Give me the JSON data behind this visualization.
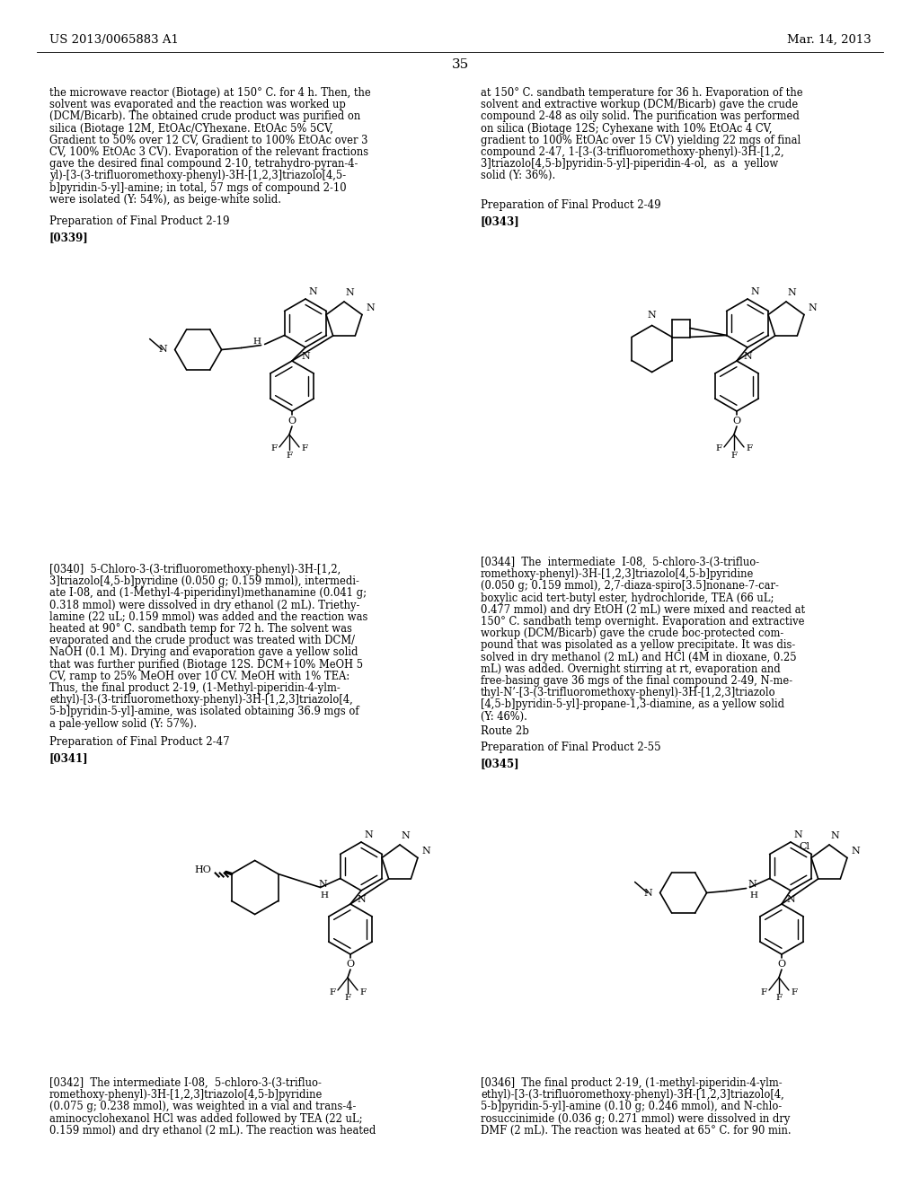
{
  "page_number": "35",
  "patent_number": "US 2013/0065883 A1",
  "patent_date": "Mar. 14, 2013",
  "bg": "#ffffff",
  "left_top": [
    "the microwave reactor (Biotage) at 150° C. for 4 h. Then, the",
    "solvent was evaporated and the reaction was worked up",
    "(DCM/Bicarb). The obtained crude product was purified on",
    "silica (Biotage 12M, EtOAc/CYhexane. EtOAc 5% 5CV,",
    "Gradient to 50% over 12 CV, Gradient to 100% EtOAc over 3",
    "CV, 100% EtOAc 3 CV). Evaporation of the relevant fractions",
    "gave the desired final compound 2-10, tetrahydro-pyran-4-",
    "yl)-[3-(3-trifluoromethoxy-phenyl)-3H-[1,2,3]triazolo[4,5-",
    "b]pyridin-5-yl]-amine; in total, 57 mgs of compound 2-10",
    "were isolated (Y: 54%), as beige-white solid."
  ],
  "right_top": [
    "at 150° C. sandbath temperature for 36 h. Evaporation of the",
    "solvent and extractive workup (DCM/Bicarb) gave the crude",
    "compound 2-48 as oily solid. The purification was performed",
    "on silica (Biotage 12S; Cyhexane with 10% EtOAc 4 CV,",
    "gradient to 100% EtOAc over 15 CV) yielding 22 mgs of final",
    "compound 2-47, 1-[3-(3-trifluoromethoxy-phenyl)-3H-[1,2,",
    "3]triazolo[4,5-b]pyridin-5-yl]-piperidin-4-ol,  as  a  yellow",
    "solid (Y: 36%)."
  ],
  "para340": [
    "[0340]  5-Chloro-3-(3-trifluoromethoxy-phenyl)-3H-[1,2,",
    "3]triazolo[4,5-b]pyridine (0.050 g; 0.159 mmol), intermedi-",
    "ate I-08, and (1-Methyl-4-piperidinyl)methanamine (0.041 g;",
    "0.318 mmol) were dissolved in dry ethanol (2 mL). Triethy-",
    "lamine (22 uL; 0.159 mmol) was added and the reaction was",
    "heated at 90° C. sandbath temp for 72 h. The solvent was",
    "evaporated and the crude product was treated with DCM/",
    "NaOH (0.1 M). Drying and evaporation gave a yellow solid",
    "that was further purified (Biotage 12S. DCM+10% MeOH 5",
    "CV, ramp to 25% MeOH over 10 CV. MeOH with 1% TEA:",
    "Thus, the final product 2-19, (1-Methyl-piperidin-4-ylm-",
    "ethyl)-[3-(3-trifluoromethoxy-phenyl)-3H-[1,2,3]triazolo[4,",
    "5-b]pyridin-5-yl]-amine, was isolated obtaining 36.9 mgs of",
    "a pale-yellow solid (Y: 57%)."
  ],
  "para344": [
    "[0344]  The  intermediate  I-08,  5-chloro-3-(3-trifluo-",
    "romethoxy-phenyl)-3H-[1,2,3]triazolo[4,5-b]pyridine",
    "(0.050 g; 0.159 mmol), 2,7-diaza-spiro[3.5]nonane-7-car-",
    "boxylic acid tert-butyl ester, hydrochloride, TEA (66 uL;",
    "0.477 mmol) and dry EtOH (2 mL) were mixed and reacted at",
    "150° C. sandbath temp overnight. Evaporation and extractive",
    "workup (DCM/Bicarb) gave the crude boc-protected com-",
    "pound that was pisolated as a yellow precipitate. It was dis-",
    "solved in dry methanol (2 mL) and HCl (4M in dioxane, 0.25",
    "mL) was added. Overnight stirring at rt, evaporation and",
    "free-basing gave 36 mgs of the final compound 2-49, N-me-",
    "thyl-N’-[3-(3-trifluoromethoxy-phenyl)-3H-[1,2,3]triazolo",
    "[4,5-b]pyridin-5-yl]-propane-1,3-diamine, as a yellow solid",
    "(Y: 46%)."
  ],
  "para342": [
    "[0342]  The intermediate I-08,  5-chloro-3-(3-trifluo-",
    "romethoxy-phenyl)-3H-[1,2,3]triazolo[4,5-b]pyridine",
    "(0.075 g; 0.238 mmol), was weighted in a vial and trans-4-",
    "aminocyclohexanol HCl was added followed by TEA (22 uL;",
    "0.159 mmol) and dry ethanol (2 mL). The reaction was heated"
  ],
  "para346": [
    "[0346]  The final product 2-19, (1-methyl-piperidin-4-ylm-",
    "ethyl)-[3-(3-trifluoromethoxy-phenyl)-3H-[1,2,3]triazolo[4,",
    "5-b]pyridin-5-yl]-amine (0.10 g; 0.246 mmol), and N-chlo-",
    "rosuccinimide (0.036 g; 0.271 mmol) were dissolved in dry",
    "DMF (2 mL). The reaction was heated at 65° C. for 90 min."
  ]
}
